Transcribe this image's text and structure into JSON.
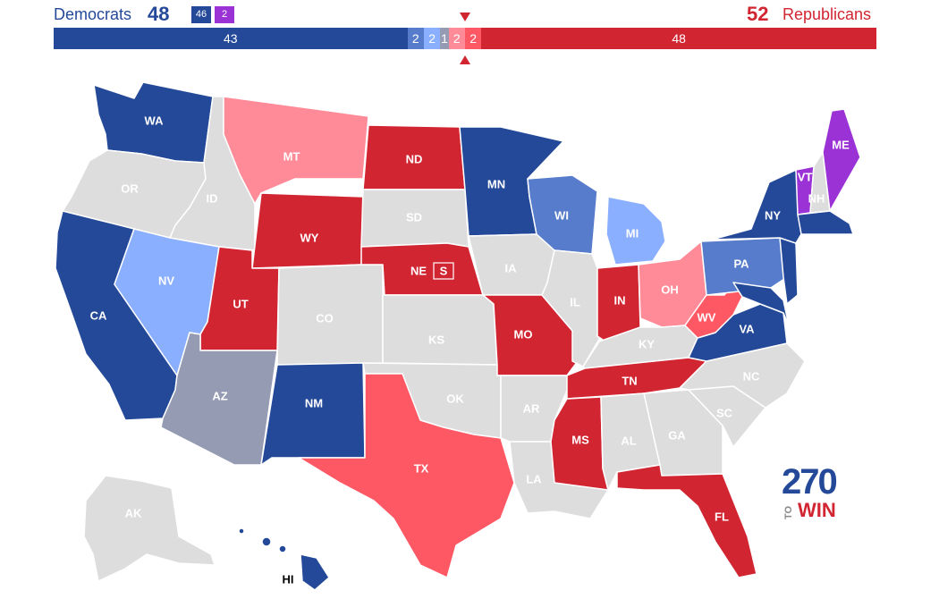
{
  "header": {
    "dem_label": "Democrats",
    "dem_total": "48",
    "rep_total": "52",
    "rep_label": "Republicans",
    "dem_badge": "46",
    "ind_badge": "2"
  },
  "seat_bar": {
    "segments": [
      {
        "label": "43",
        "value": 43,
        "color": "#244999"
      },
      {
        "label": "2",
        "value": 2,
        "color": "#577ccc"
      },
      {
        "label": "2",
        "value": 2,
        "color": "#8aafff"
      },
      {
        "label": "1",
        "value": 1,
        "color": "#949bb3"
      },
      {
        "label": "2",
        "value": 2,
        "color": "#ff8b98"
      },
      {
        "label": "2",
        "value": 2,
        "color": "#ff5865"
      },
      {
        "label": "48",
        "value": 48,
        "color": "#d22532"
      }
    ]
  },
  "colors": {
    "safe_dem": "#244999",
    "likely_dem": "#577ccc",
    "lean_dem": "#8aafff",
    "tossup": "#949bb3",
    "lean_rep": "#ff8b98",
    "likely_rep": "#ff5865",
    "safe_rep": "#d22532",
    "independent": "#9b32d6",
    "no_race": "#dddddd"
  },
  "states": {
    "WA": "WA",
    "OR": "OR",
    "CA": "CA",
    "ID": "ID",
    "NV": "NV",
    "MT": "MT",
    "WY": "WY",
    "UT": "UT",
    "AZ": "AZ",
    "CO": "CO",
    "NM": "NM",
    "ND": "ND",
    "SD": "SD",
    "NE": "NE",
    "KS": "KS",
    "OK": "OK",
    "TX": "TX",
    "MN": "MN",
    "IA": "IA",
    "MO": "MO",
    "AR": "AR",
    "LA": "LA",
    "WI": "WI",
    "IL": "IL",
    "MI": "MI",
    "IN": "IN",
    "OH": "OH",
    "KY": "KY",
    "TN": "TN",
    "MS": "MS",
    "AL": "AL",
    "GA": "GA",
    "FL": "FL",
    "SC": "SC",
    "NC": "NC",
    "VA": "VA",
    "WV": "WV",
    "PA": "PA",
    "NY": "NY",
    "VT": "VT",
    "NH": "NH",
    "ME": "ME",
    "AK": "AK",
    "HI": "HI"
  },
  "special_marker": "S",
  "logo": {
    "number": "270",
    "to": "TO",
    "win": "WIN"
  }
}
